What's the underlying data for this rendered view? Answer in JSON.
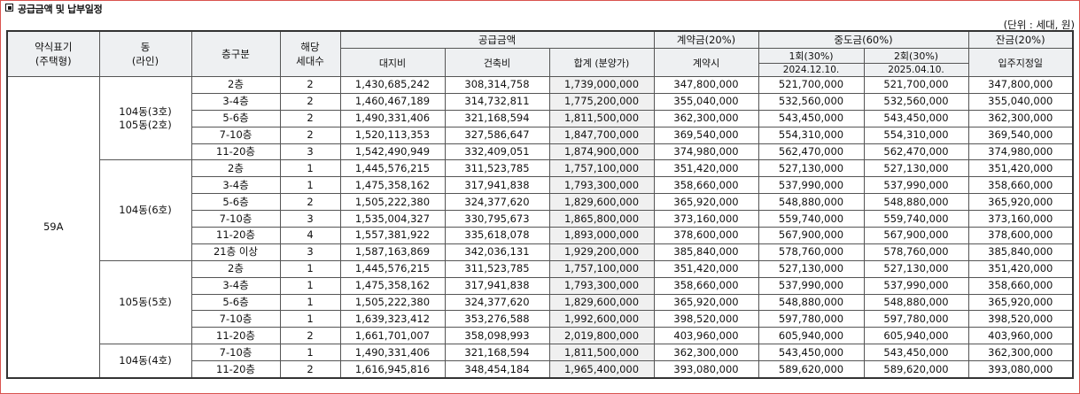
{
  "title": "공급금액 및 납부일정",
  "unit": "(단위 : 세대, 원)",
  "headers": {
    "type": "약식표기\n(주택형)",
    "dong": "동\n(라인)",
    "floor": "층구분",
    "units": "해당\n세대수",
    "supply": "공급금액",
    "land": "대지비",
    "building": "건축비",
    "total": "합계 (분양가)",
    "contract": "계약금(20%)",
    "contract_when": "계약시",
    "middle": "중도금(60%)",
    "m1": "1회(30%)",
    "m1_date": "2024.12.10.",
    "m2": "2회(30%)",
    "m2_date": "2025.04.10.",
    "balance": "잔금(20%)",
    "balance_when": "입주지정일"
  },
  "house_type": "59A",
  "groups": [
    {
      "dong": "104동(3호)\n105동(2호)",
      "rows": [
        {
          "floor": "2층",
          "units": "2",
          "land": "1,430,685,242",
          "building": "308,314,758",
          "total": "1,739,000,000",
          "contract": "347,800,000",
          "m1": "521,700,000",
          "m2": "521,700,000",
          "balance": "347,800,000"
        },
        {
          "floor": "3-4층",
          "units": "2",
          "land": "1,460,467,189",
          "building": "314,732,811",
          "total": "1,775,200,000",
          "contract": "355,040,000",
          "m1": "532,560,000",
          "m2": "532,560,000",
          "balance": "355,040,000"
        },
        {
          "floor": "5-6층",
          "units": "2",
          "land": "1,490,331,406",
          "building": "321,168,594",
          "total": "1,811,500,000",
          "contract": "362,300,000",
          "m1": "543,450,000",
          "m2": "543,450,000",
          "balance": "362,300,000"
        },
        {
          "floor": "7-10층",
          "units": "2",
          "land": "1,520,113,353",
          "building": "327,586,647",
          "total": "1,847,700,000",
          "contract": "369,540,000",
          "m1": "554,310,000",
          "m2": "554,310,000",
          "balance": "369,540,000"
        },
        {
          "floor": "11-20층",
          "units": "3",
          "land": "1,542,490,949",
          "building": "332,409,051",
          "total": "1,874,900,000",
          "contract": "374,980,000",
          "m1": "562,470,000",
          "m2": "562,470,000",
          "balance": "374,980,000"
        }
      ]
    },
    {
      "dong": "104동(6호)",
      "rows": [
        {
          "floor": "2층",
          "units": "1",
          "land": "1,445,576,215",
          "building": "311,523,785",
          "total": "1,757,100,000",
          "contract": "351,420,000",
          "m1": "527,130,000",
          "m2": "527,130,000",
          "balance": "351,420,000"
        },
        {
          "floor": "3-4층",
          "units": "1",
          "land": "1,475,358,162",
          "building": "317,941,838",
          "total": "1,793,300,000",
          "contract": "358,660,000",
          "m1": "537,990,000",
          "m2": "537,990,000",
          "balance": "358,660,000"
        },
        {
          "floor": "5-6층",
          "units": "2",
          "land": "1,505,222,380",
          "building": "324,377,620",
          "total": "1,829,600,000",
          "contract": "365,920,000",
          "m1": "548,880,000",
          "m2": "548,880,000",
          "balance": "365,920,000"
        },
        {
          "floor": "7-10층",
          "units": "3",
          "land": "1,535,004,327",
          "building": "330,795,673",
          "total": "1,865,800,000",
          "contract": "373,160,000",
          "m1": "559,740,000",
          "m2": "559,740,000",
          "balance": "373,160,000"
        },
        {
          "floor": "11-20층",
          "units": "4",
          "land": "1,557,381,922",
          "building": "335,618,078",
          "total": "1,893,000,000",
          "contract": "378,600,000",
          "m1": "567,900,000",
          "m2": "567,900,000",
          "balance": "378,600,000"
        },
        {
          "floor": "21층 이상",
          "units": "3",
          "land": "1,587,163,869",
          "building": "342,036,131",
          "total": "1,929,200,000",
          "contract": "385,840,000",
          "m1": "578,760,000",
          "m2": "578,760,000",
          "balance": "385,840,000"
        }
      ]
    },
    {
      "dong": "105동(5호)",
      "rows": [
        {
          "floor": "2층",
          "units": "1",
          "land": "1,445,576,215",
          "building": "311,523,785",
          "total": "1,757,100,000",
          "contract": "351,420,000",
          "m1": "527,130,000",
          "m2": "527,130,000",
          "balance": "351,420,000"
        },
        {
          "floor": "3-4층",
          "units": "1",
          "land": "1,475,358,162",
          "building": "317,941,838",
          "total": "1,793,300,000",
          "contract": "358,660,000",
          "m1": "537,990,000",
          "m2": "537,990,000",
          "balance": "358,660,000"
        },
        {
          "floor": "5-6층",
          "units": "1",
          "land": "1,505,222,380",
          "building": "324,377,620",
          "total": "1,829,600,000",
          "contract": "365,920,000",
          "m1": "548,880,000",
          "m2": "548,880,000",
          "balance": "365,920,000"
        },
        {
          "floor": "7-10층",
          "units": "1",
          "land": "1,639,323,412",
          "building": "353,276,588",
          "total": "1,992,600,000",
          "contract": "398,520,000",
          "m1": "597,780,000",
          "m2": "597,780,000",
          "balance": "398,520,000"
        },
        {
          "floor": "11-20층",
          "units": "2",
          "land": "1,661,701,007",
          "building": "358,098,993",
          "total": "2,019,800,000",
          "contract": "403,960,000",
          "m1": "605,940,000",
          "m2": "605,940,000",
          "balance": "403,960,000"
        }
      ]
    },
    {
      "dong": "104동(4호)",
      "rows": [
        {
          "floor": "7-10층",
          "units": "1",
          "land": "1,490,331,406",
          "building": "321,168,594",
          "total": "1,811,500,000",
          "contract": "362,300,000",
          "m1": "543,450,000",
          "m2": "543,450,000",
          "balance": "362,300,000"
        },
        {
          "floor": "11-20층",
          "units": "2",
          "land": "1,616,945,816",
          "building": "348,454,184",
          "total": "1,965,400,000",
          "contract": "393,080,000",
          "m1": "589,620,000",
          "m2": "589,620,000",
          "balance": "393,080,000"
        }
      ]
    }
  ]
}
